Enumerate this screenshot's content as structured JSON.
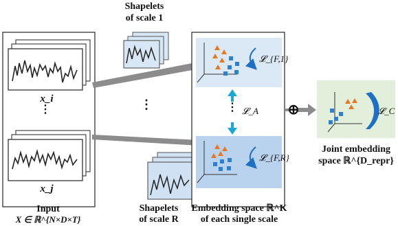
{
  "input": {
    "label": "Input",
    "formula": "X ∈ ℝ^{N×D×T}",
    "series_i": "x_i",
    "series_j": "x_j",
    "dots": "⋮"
  },
  "shapelets": {
    "scale1_line1": "Shapelets",
    "scale1_line2": "of scale 1",
    "scaleR_line1": "Shapelets",
    "scaleR_line2": "of scale R",
    "dots": "⋮"
  },
  "embedding": {
    "label_line1": "Embedding space ℝ^K",
    "label_line2": "of each single scale",
    "loss_top": "𝓛_{F,1}",
    "loss_mid": "𝓛_A",
    "loss_bottom": "𝓛_{F,R}",
    "dots": "⋮"
  },
  "joint": {
    "label_line1": "Joint embedding",
    "label_line2": "space ℝ^{D_repr}",
    "loss": "𝓛_C",
    "combine_symbol": "⊕"
  },
  "colors": {
    "orange": "#e87722",
    "blue": "#2f7fd1",
    "panel_blue_light": "#dbe9f6",
    "panel_blue_mid": "#b9d3ee",
    "joint_green": "#e2efda",
    "arrow_grey": "#8c8c8c",
    "loss_blue": "#1f6fc4",
    "teal_arrow": "#1aa7d8"
  }
}
